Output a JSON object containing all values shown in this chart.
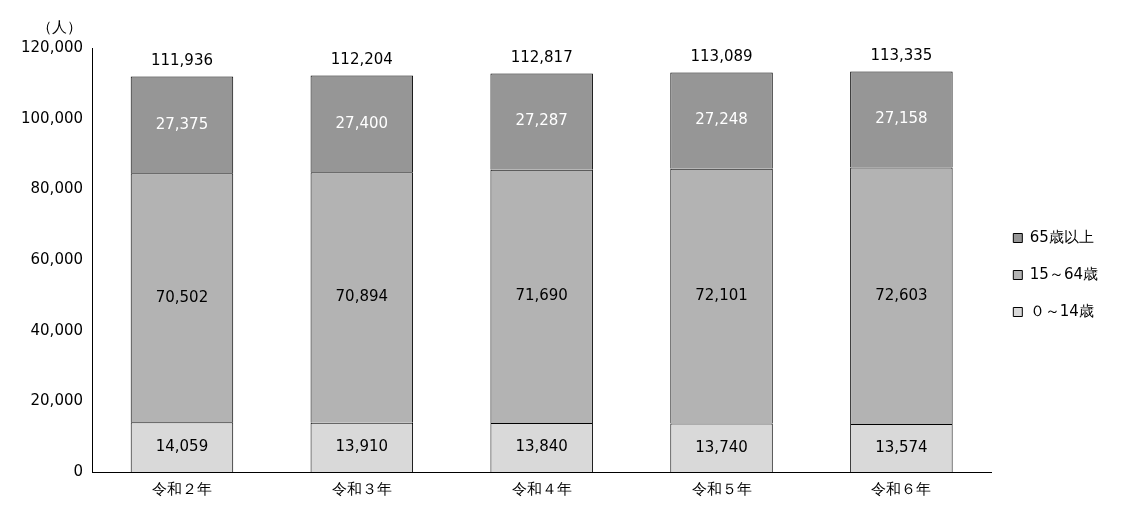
{
  "chart_data": {
    "type": "bar",
    "stacked": true,
    "ylabel": "（人）",
    "categories": [
      "令和２年",
      "令和３年",
      "令和４年",
      "令和５年",
      "令和６年"
    ],
    "series": [
      {
        "name": "０～14歳",
        "color": "#d9d9d9",
        "values": [
          14059,
          13910,
          13840,
          13740,
          13574
        ],
        "value_labels": [
          "14,059",
          "13,910",
          "13,840",
          "13,740",
          "13,574"
        ]
      },
      {
        "name": "15～64歳",
        "color": "#b3b3b3",
        "values": [
          70502,
          70894,
          71690,
          72101,
          72603
        ],
        "value_labels": [
          "70,502",
          "70,894",
          "71,690",
          "72,101",
          "72,603"
        ]
      },
      {
        "name": "65歳以上",
        "color": "#969696",
        "values": [
          27375,
          27400,
          27287,
          27248,
          27158
        ],
        "value_labels": [
          "27,375",
          "27,400",
          "27,287",
          "27,248",
          "27,158"
        ]
      }
    ],
    "totals": [
      "111,936",
      "112,204",
      "112,817",
      "113,089",
      "113,335"
    ],
    "ylim": [
      0,
      120000
    ],
    "yticks": [
      {
        "value": 0,
        "label": "0"
      },
      {
        "value": 20000,
        "label": "20,000"
      },
      {
        "value": 40000,
        "label": "40,000"
      },
      {
        "value": 60000,
        "label": "60,000"
      },
      {
        "value": 80000,
        "label": "80,000"
      },
      {
        "value": 100000,
        "label": "100,000"
      },
      {
        "value": 120000,
        "label": "120,000"
      }
    ],
    "grid": false,
    "legend": "right"
  }
}
